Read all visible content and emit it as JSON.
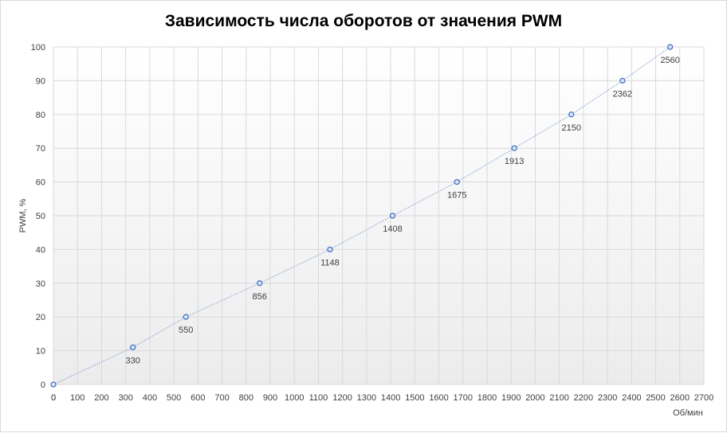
{
  "chart_data": {
    "type": "scatter",
    "title": "Зависимость числа оборотов от значения PWM",
    "xlabel": "Об/мин",
    "ylabel": "PWM, %",
    "xlim": [
      0,
      2700
    ],
    "ylim": [
      0,
      100
    ],
    "x_ticks": [
      "0",
      "100",
      "200",
      "300",
      "400",
      "500",
      "600",
      "700",
      "800",
      "900",
      "1000",
      "1100",
      "1200",
      "1300",
      "1400",
      "1500",
      "1600",
      "1700",
      "1800",
      "1900",
      "2000",
      "2100",
      "2200",
      "2300",
      "2400",
      "2500",
      "2600",
      "2700"
    ],
    "y_ticks": [
      "0",
      "10",
      "20",
      "30",
      "40",
      "50",
      "60",
      "70",
      "80",
      "90",
      "100"
    ],
    "grid": true,
    "series": [
      {
        "x": [
          0,
          330,
          550,
          856,
          1148,
          1408,
          1675,
          1913,
          2150,
          2362,
          2560
        ],
        "y": [
          0,
          11,
          20,
          30,
          40,
          50,
          60,
          70,
          80,
          90,
          100
        ],
        "labels": [
          "0",
          "330",
          "550",
          "856",
          "1148",
          "1408",
          "1675",
          "1913",
          "2150",
          "2362",
          "2560"
        ]
      }
    ],
    "colors": {
      "marker": "#4472c4",
      "line": "#8faadc",
      "grid": "#d9d9d9"
    }
  }
}
